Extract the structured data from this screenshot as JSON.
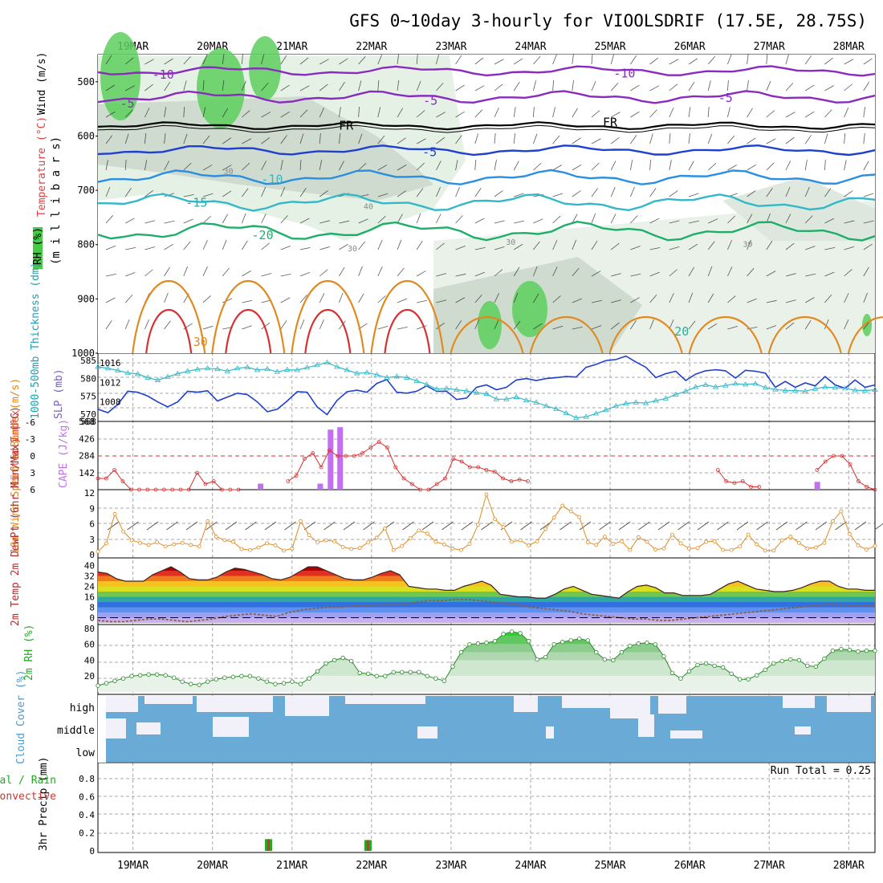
{
  "chart_data": {
    "type": "meteogram",
    "title": "GFS 0~10day 3-hourly for VIOOLSDRIF (17.5E, 28.75S)",
    "dates": [
      "19MAR",
      "20MAR",
      "21MAR",
      "22MAR",
      "23MAR",
      "24MAR",
      "25MAR",
      "26MAR",
      "27MAR",
      "28MAR"
    ],
    "x_start_day": 18.56,
    "x_end_day": 28.33,
    "colors": {
      "grid": "#aaaaaa",
      "purple": "#8a2bbf",
      "blue": "#1f3fcf",
      "cyan": "#33b8c8",
      "red": "#d83030",
      "orange": "#e08a20",
      "green": "#22aa22",
      "cape": "#c070f0",
      "cloud": "#6aaad6",
      "white_sky": "#f2f0f8"
    },
    "panels": {
      "upper": {
        "axis_title": "(m i l l i b a r s)",
        "legend": [
          "Wind (m/s)",
          "Temperature (°C)",
          "RH (%)"
        ],
        "pressure_ticks": [
          "500",
          "600",
          "700",
          "800",
          "900",
          "1000"
        ],
        "contour_labels": [
          {
            "text": "-10",
            "day": 19.38,
            "p": 487,
            "color": "purple"
          },
          {
            "text": "-10",
            "day": 25.18,
            "p": 485,
            "color": "purple"
          },
          {
            "text": "-5",
            "day": 18.93,
            "p": 540,
            "color": "purple"
          },
          {
            "text": "-5",
            "day": 22.74,
            "p": 535,
            "color": "purple"
          },
          {
            "text": "-5",
            "day": 26.45,
            "p": 530,
            "color": "purple"
          },
          {
            "text": "FR",
            "day": 21.68,
            "p": 581,
            "color": "black"
          },
          {
            "text": "FR",
            "day": 25.0,
            "p": 575,
            "color": "black"
          },
          {
            "text": "-5",
            "day": 22.73,
            "p": 630,
            "color": "blue"
          },
          {
            "text": "-10",
            "day": 20.75,
            "p": 680,
            "color": "cyan"
          },
          {
            "text": "-15",
            "day": 19.8,
            "p": 723,
            "color": "teal"
          },
          {
            "text": "-20",
            "day": 20.63,
            "p": 783,
            "color": "green"
          },
          {
            "text": "30",
            "day": 19.85,
            "p": 979,
            "color": "orange"
          },
          {
            "text": "20",
            "day": 25.9,
            "p": 960,
            "color": "teal"
          },
          {
            "text": "30",
            "day": 20.2,
            "p": 662,
            "color": "gray"
          },
          {
            "text": "30",
            "day": 23.75,
            "p": 793,
            "color": "gray"
          },
          {
            "text": "30",
            "day": 26.73,
            "p": 797,
            "color": "gray"
          },
          {
            "text": "30",
            "day": 21.76,
            "p": 805,
            "color": "gray"
          },
          {
            "text": "40",
            "day": 21.96,
            "p": 727,
            "color": "gray"
          }
        ]
      },
      "slp": {
        "left_label": "1000-500mb Thickness (dm)",
        "right_label": "SLP (mb)",
        "thickness_ticks": [
          "585",
          "580",
          "575",
          "570",
          "568"
        ],
        "slp_ticks": [
          "1016",
          "1012",
          "1008"
        ],
        "slp_mb": [
          1006.5,
          1005.8,
          1007.5,
          1010.2,
          1010.0,
          1009.2,
          1008.0,
          1007.0,
          1008.0,
          1010.2,
          1010.0,
          1010.3,
          1008.2,
          1009.0,
          1009.8,
          1009.5,
          1008.0,
          1006.0,
          1006.5,
          1008.2,
          1010.1,
          1010.0,
          1007.0,
          1005.4,
          1008.3,
          1010.1,
          1010.4,
          1010.0,
          1011.8,
          1012.6,
          1010.0,
          1009.8,
          1010.2,
          1011.3,
          1010.2,
          1010.2,
          1008.5,
          1008.8,
          1011.0,
          1011.5,
          1010.5,
          1011.0,
          1012.5,
          1012.8,
          1012.4,
          1012.8,
          1013.0,
          1013.2,
          1013.1,
          1015.1,
          1015.7,
          1016.5,
          1016.7,
          1017.4,
          1016.2,
          1015.1,
          1013.0,
          1013.8,
          1014.3,
          1012.4,
          1013.7,
          1014.4,
          1014.6,
          1014.4,
          1012.9,
          1014.5,
          1014.3,
          1013.9,
          1011.0,
          1012.2,
          1011.0,
          1011.9,
          1011.3,
          1013.2,
          1011.5,
          1010.8,
          1012.5,
          1011.0,
          1011.5
        ],
        "thickness_dm": [
          583.2,
          582.8,
          582.2,
          581.5,
          581.2,
          580.2,
          579.5,
          580.4,
          581.3,
          582.0,
          582.5,
          582.8,
          582.6,
          582.0,
          582.8,
          583.1,
          582.3,
          582.6,
          581.8,
          582.4,
          582.3,
          583.0,
          583.7,
          584.4,
          583.2,
          582.3,
          581.4,
          581.6,
          581.0,
          580.2,
          580.5,
          580.2,
          579.3,
          578.3,
          577.0,
          577.2,
          576.8,
          576.5,
          576.0,
          575.7,
          574.2,
          574.2,
          574.8,
          573.9,
          573.3,
          572.3,
          571.5,
          570.3,
          569.0,
          569.3,
          570.2,
          571.2,
          572.3,
          573.0,
          573.3,
          573.1,
          573.8,
          574.4,
          575.5,
          576.4,
          577.6,
          578.2,
          577.6,
          578.0,
          578.5,
          578.3,
          578.5,
          577.4,
          576.9,
          576.6,
          576.6,
          576.4,
          577.1,
          577.6,
          577.4,
          577.2,
          576.7,
          576.6,
          576.8
        ]
      },
      "cape": {
        "left_label": "Lifted Index",
        "right_label": "CAPE (J/kg)",
        "li_ticks": [
          "-6",
          "-3",
          "0",
          "3",
          "6"
        ],
        "cape_ticks": [
          "568",
          "426",
          "284",
          "142"
        ],
        "lifted_index": [
          4,
          4,
          2.5,
          4.5,
          6,
          6,
          6,
          6,
          6,
          6,
          6,
          6,
          3,
          5,
          4.5,
          6,
          6,
          6,
          null,
          null,
          null,
          null,
          null,
          4.5,
          3.5,
          0.5,
          -0.5,
          2,
          -1,
          0,
          0,
          0,
          -0.5,
          -1.5,
          -2.5,
          -1.5,
          2,
          4,
          5,
          6,
          6,
          5,
          4,
          0.5,
          1,
          2,
          2,
          2.5,
          2.8,
          4,
          4.5,
          4.2,
          4.5,
          null,
          null,
          null,
          null,
          null,
          null,
          null,
          null,
          null,
          null,
          null,
          null,
          null,
          null,
          null,
          null,
          null,
          null,
          null,
          null,
          null,
          null,
          2.5,
          4.5,
          4.8,
          4.5,
          5.5,
          5.5,
          null,
          null,
          null,
          null,
          null,
          null,
          2.5,
          1,
          0,
          0,
          1.5,
          4.5,
          5.5,
          6
        ],
        "cape_bars": [
          {
            "day": 20.6,
            "jkg": 50
          },
          {
            "day": 21.35,
            "jkg": 50
          },
          {
            "day": 21.48,
            "jkg": 500
          },
          {
            "day": 21.6,
            "jkg": 520
          },
          {
            "day": 27.6,
            "jkg": 65
          }
        ]
      },
      "wind": {
        "label": "10m Wind Speed & Barbs (m/s)",
        "ticks": [
          "12",
          "9",
          "6",
          "3",
          "0"
        ],
        "speed": [
          0.6,
          2.2,
          7.9,
          4.5,
          2.8,
          2.3,
          1.9,
          2.4,
          1.6,
          2.0,
          2.3,
          1.9,
          1.6,
          6.5,
          3.5,
          2.8,
          2.5,
          1.1,
          0.9,
          1.4,
          2.2,
          1.8,
          0.8,
          1.2,
          6.5,
          3.8,
          2.4,
          2.8,
          2.6,
          1.5,
          1.1,
          1.3,
          2.4,
          3.3,
          5.1,
          0.9,
          1.7,
          3.2,
          4.7,
          4.1,
          2.5,
          2.0,
          1.2,
          0.9,
          2.1,
          5.8,
          11.7,
          6.9,
          5.4,
          2.5,
          2.8,
          1.8,
          2.6,
          5.0,
          7.2,
          9.5,
          8.4,
          7.3,
          2.4,
          1.9,
          3.5,
          2.1,
          2.6,
          0.9,
          3.4,
          2.5,
          1.0,
          1.2,
          3.9,
          2.2,
          1.2,
          1.3,
          2.5,
          2.6,
          0.9,
          0.9,
          1.6,
          3.9,
          2.0,
          0.8,
          0.8,
          2.8,
          3.5,
          2.3,
          1.2,
          1.4,
          2.3,
          6.5,
          8.4,
          4.0,
          1.8,
          1.0,
          1.7
        ]
      },
      "temp": {
        "label": "2m Temp 2m DewPt (6hr Min/Max) (°C)",
        "ticks": [
          "40",
          "32",
          "24",
          "16",
          "8",
          "0"
        ],
        "temp_c": [
          35,
          34,
          30,
          28,
          28,
          28,
          33,
          36,
          39,
          35,
          30,
          29,
          29,
          31,
          35,
          38,
          37,
          35,
          33,
          30,
          29,
          31,
          35,
          39,
          39,
          36,
          33,
          30,
          29,
          29,
          31,
          34,
          36,
          33,
          24,
          23,
          22,
          22,
          21,
          21,
          24,
          26,
          28,
          25,
          18,
          17,
          16,
          16,
          15,
          15,
          18,
          22,
          24,
          21,
          18,
          17,
          16,
          15,
          20,
          24,
          25,
          23,
          19,
          19,
          17,
          17,
          17,
          18,
          22,
          26,
          28,
          25,
          22,
          21,
          20,
          20,
          21,
          23,
          26,
          28,
          28,
          24,
          22,
          22,
          21,
          21
        ],
        "dewpt_c": [
          -2,
          -3,
          -3,
          -2,
          -1,
          -1,
          -2,
          -3,
          -2,
          -1,
          1,
          2,
          3,
          2,
          1,
          4,
          6,
          7,
          8,
          8,
          9,
          9,
          10,
          10,
          10,
          12,
          13,
          13,
          14,
          14,
          13,
          12,
          11,
          10,
          8,
          7,
          6,
          5,
          3,
          2,
          1,
          0,
          -1,
          -1,
          -2,
          -2,
          -1,
          0,
          1,
          2,
          3,
          4,
          5,
          6,
          7,
          8,
          9,
          10,
          10,
          9,
          9,
          9
        ]
      },
      "rh2m": {
        "label": "2m RH (%)",
        "ticks": [
          "80",
          "60",
          "40",
          "20"
        ],
        "rh": [
          8,
          11,
          14,
          17,
          20,
          21,
          22,
          22,
          21,
          18,
          13,
          10,
          9,
          13,
          16,
          18,
          19,
          20,
          20,
          17,
          13,
          10,
          11,
          13,
          10,
          17,
          26,
          36,
          40,
          43,
          39,
          24,
          23,
          20,
          20,
          25,
          25,
          25,
          25,
          20,
          17,
          14,
          32,
          50,
          60,
          61,
          62,
          64,
          73,
          76,
          74,
          64,
          41,
          44,
          60,
          63,
          65,
          67,
          65,
          50,
          41,
          40,
          50,
          58,
          61,
          62,
          60,
          45,
          24,
          17,
          26,
          34,
          36,
          33,
          31,
          23,
          16,
          16,
          21,
          28,
          36,
          39,
          41,
          40,
          33,
          32,
          42,
          52,
          54,
          53,
          51,
          52,
          52
        ]
      },
      "cloud": {
        "label": "Cloud Cover (%)",
        "levels": [
          "high",
          "middle",
          "low"
        ]
      },
      "precip": {
        "label": "3hr Precip (mm)",
        "legend": [
          "Total / Rain",
          "Convective"
        ],
        "ticks": [
          "0.8",
          "0.6",
          "0.4",
          "0.2",
          "0"
        ],
        "run_total": "Run Total = 0.25",
        "bars": [
          {
            "day": 20.7,
            "mm": 0.13
          },
          {
            "day": 21.95,
            "mm": 0.12
          }
        ]
      }
    }
  }
}
